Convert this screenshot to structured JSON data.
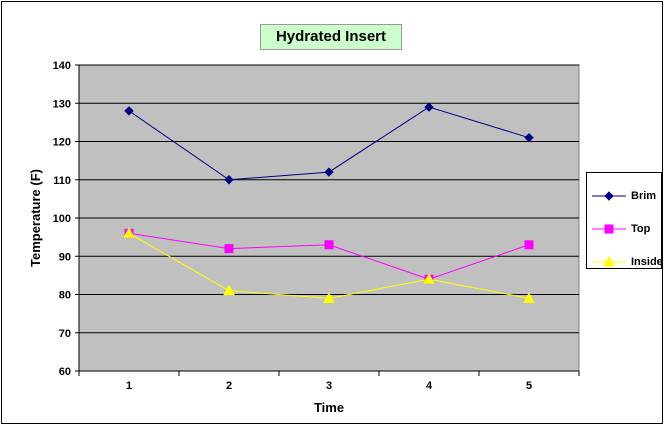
{
  "chart_data": {
    "type": "line",
    "title": "Hydrated Insert",
    "xlabel": "Time",
    "ylabel": "Temperature (F)",
    "categories": [
      "1",
      "2",
      "3",
      "4",
      "5"
    ],
    "ylim": [
      60,
      140
    ],
    "yticks": [
      60,
      70,
      80,
      90,
      100,
      110,
      120,
      130,
      140
    ],
    "grid": true,
    "legend_position": "right",
    "plot_background": "#c0c0c0",
    "series": [
      {
        "name": "Brim",
        "values": [
          128,
          110,
          112,
          129,
          121
        ],
        "color": "#000080",
        "marker": "diamond"
      },
      {
        "name": "Top",
        "values": [
          96,
          92,
          93,
          84,
          93
        ],
        "color": "#ff00ff",
        "marker": "square"
      },
      {
        "name": "Inside",
        "values": [
          96,
          81,
          79,
          84,
          79
        ],
        "color": "#ffff00",
        "marker": "triangle"
      }
    ]
  }
}
